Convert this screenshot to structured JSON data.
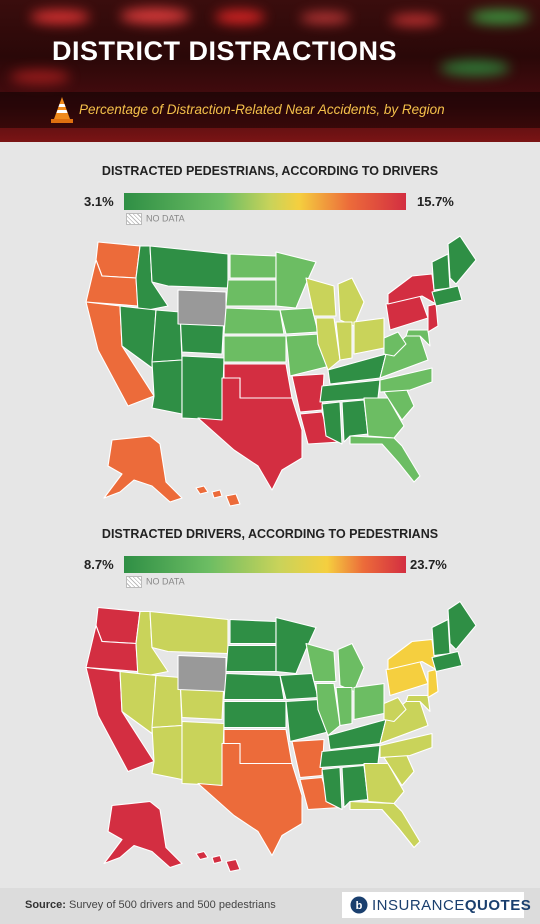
{
  "header": {
    "title": "DISTRICT DISTRACTIONS",
    "subtitle": "Percentage of Distraction-Related Near Accidents, by Region"
  },
  "colors": {
    "dark_green": "#2f8f45",
    "mid_green": "#6cbd63",
    "yellow_green": "#c9d35a",
    "yellow": "#f5cf3f",
    "orange": "#ec6b3a",
    "red": "#d32e41",
    "no_data": "hatched"
  },
  "maps": [
    {
      "title": "DISTRACTED PEDESTRIANS, ACCORDING TO DRIVERS",
      "scale_min": "3.1%",
      "scale_max": "15.7%",
      "no_data_label": "NO DATA",
      "regions": {
        "pacific": "orange",
        "mountain": "dark_green",
        "wyoming": "no_data",
        "montana": "dark_green",
        "west_north_central": "mid_green",
        "east_north_central": "yellow_green",
        "west_south_central": "red",
        "east_south_central": "dark_green",
        "south_atlantic": "mid_green",
        "middle_atlantic": "red",
        "new_england": "dark_green",
        "alaska": "orange",
        "hawaii": "orange"
      }
    },
    {
      "title": "DISTRACTED DRIVERS, ACCORDING TO PEDESTRIANS",
      "scale_min": "8.7%",
      "scale_max": "23.7%",
      "no_data_label": "NO DATA",
      "regions": {
        "pacific": "red",
        "mountain": "yellow_green",
        "wyoming": "no_data",
        "montana": "yellow_green",
        "west_north_central": "dark_green",
        "east_north_central": "mid_green",
        "west_south_central": "orange",
        "east_south_central": "dark_green",
        "south_atlantic": "yellow_green",
        "middle_atlantic": "yellow",
        "new_england": "dark_green",
        "alaska": "red",
        "hawaii": "red"
      }
    }
  ],
  "footer": {
    "source_label": "Source:",
    "source_text": "Survey of 500 drivers and 500 pedestrians",
    "brand_prefix": "INSURANCE",
    "brand_suffix": "QUOTES"
  }
}
